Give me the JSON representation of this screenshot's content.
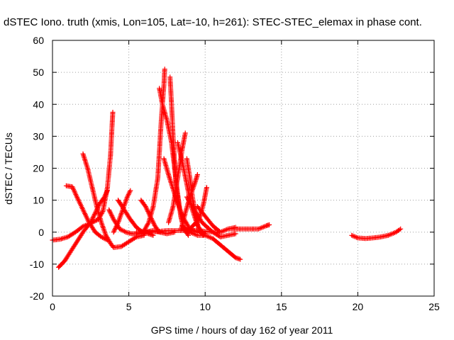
{
  "chart_data": {
    "type": "scatter",
    "title": "dSTEC Iono. truth (xmis, Lon=105, Lat=-10, h=261): STEC-STEC_elemax in phase cont.",
    "xlabel": "GPS time / hours of day 162 of year 2011",
    "ylabel": "dSTEC  / TECUs",
    "xlim": [
      0,
      25
    ],
    "ylim": [
      -20,
      60
    ],
    "xticks": [
      0,
      5,
      10,
      15,
      20,
      25
    ],
    "yticks": [
      -20,
      -10,
      0,
      10,
      20,
      30,
      40,
      50,
      60
    ],
    "xtick_labels": [
      "0",
      "5",
      "10",
      "15",
      "20",
      "25"
    ],
    "ytick_labels": [
      "-20",
      "-10",
      "0",
      "10",
      "20",
      "30",
      "40",
      "50",
      "60"
    ],
    "grid": true,
    "marker": "plus",
    "marker_color": "#ff0000",
    "series": [
      {
        "points": [
          [
            0.0,
            -2.5
          ],
          [
            0.5,
            -2.2
          ],
          [
            1.0,
            -1.5
          ],
          [
            1.5,
            0.0
          ],
          [
            2.0,
            1.8
          ],
          [
            2.5,
            2.8
          ],
          [
            3.0,
            4.0
          ],
          [
            3.3,
            6.5
          ],
          [
            3.6,
            14.0
          ],
          [
            3.8,
            24.0
          ],
          [
            3.9,
            33.0
          ],
          [
            3.95,
            37.5
          ]
        ]
      },
      {
        "points": [
          [
            0.4,
            -11.0
          ],
          [
            0.8,
            -9.0
          ],
          [
            1.2,
            -6.0
          ],
          [
            1.6,
            -3.0
          ],
          [
            2.0,
            0.0
          ],
          [
            2.5,
            3.0
          ],
          [
            2.8,
            6.0
          ],
          [
            3.1,
            9.0
          ],
          [
            3.4,
            11.0
          ],
          [
            3.6,
            13.0
          ]
        ]
      },
      {
        "points": [
          [
            0.9,
            14.5
          ],
          [
            1.3,
            14.2
          ],
          [
            1.6,
            11.0
          ],
          [
            2.0,
            7.0
          ],
          [
            2.4,
            3.0
          ],
          [
            2.8,
            0.0
          ],
          [
            3.2,
            -1.5
          ],
          [
            3.6,
            -2.5
          ]
        ]
      },
      {
        "points": [
          [
            2.0,
            24.5
          ],
          [
            2.3,
            20.0
          ],
          [
            2.6,
            14.0
          ],
          [
            2.9,
            8.0
          ],
          [
            3.2,
            3.0
          ],
          [
            3.5,
            -1.0
          ],
          [
            3.8,
            -3.5
          ],
          [
            4.0,
            -4.8
          ],
          [
            4.5,
            -4.5
          ],
          [
            5.0,
            -3.0
          ],
          [
            5.5,
            -1.5
          ],
          [
            6.0,
            -1.0
          ]
        ]
      },
      {
        "points": [
          [
            3.7,
            7.0
          ],
          [
            4.0,
            4.0
          ],
          [
            4.4,
            1.0
          ],
          [
            4.8,
            0.0
          ],
          [
            5.2,
            -0.5
          ],
          [
            5.6,
            -0.5
          ],
          [
            6.0,
            0.0
          ],
          [
            6.6,
            0.5
          ],
          [
            7.0,
            0.0
          ],
          [
            7.5,
            -0.5
          ],
          [
            8.0,
            0.0
          ]
        ]
      },
      {
        "points": [
          [
            4.0,
            0.0
          ],
          [
            4.3,
            3.0
          ],
          [
            4.6,
            7.0
          ],
          [
            4.9,
            11.0
          ],
          [
            5.1,
            13.0
          ]
        ]
      },
      {
        "points": [
          [
            4.3,
            10.0
          ],
          [
            4.7,
            7.0
          ],
          [
            5.1,
            4.0
          ],
          [
            5.5,
            1.5
          ],
          [
            5.9,
            0.0
          ],
          [
            6.3,
            -0.5
          ],
          [
            6.6,
            -1.0
          ]
        ]
      },
      {
        "points": [
          [
            5.8,
            10.0
          ],
          [
            6.1,
            8.0
          ],
          [
            6.4,
            5.0
          ],
          [
            6.7,
            2.0
          ],
          [
            7.0,
            0.0
          ],
          [
            7.5,
            -0.5
          ],
          [
            8.0,
            0.0
          ]
        ]
      },
      {
        "points": [
          [
            6.0,
            0.5
          ],
          [
            6.3,
            3.0
          ],
          [
            6.6,
            8.0
          ],
          [
            6.9,
            17.0
          ],
          [
            7.0,
            25.0
          ],
          [
            7.1,
            33.0
          ],
          [
            7.2,
            40.0
          ],
          [
            7.3,
            46.0
          ],
          [
            7.35,
            51.0
          ]
        ]
      },
      {
        "points": [
          [
            7.0,
            45.0
          ],
          [
            7.2,
            40.0
          ],
          [
            7.5,
            35.0
          ],
          [
            7.8,
            28.0
          ],
          [
            8.0,
            20.0
          ],
          [
            8.2,
            12.0
          ],
          [
            8.4,
            5.0
          ],
          [
            8.6,
            1.0
          ],
          [
            8.9,
            -1.0
          ]
        ]
      },
      {
        "points": [
          [
            7.3,
            23.0
          ],
          [
            7.6,
            18.0
          ],
          [
            8.0,
            12.0
          ],
          [
            8.5,
            5.0
          ],
          [
            9.0,
            1.0
          ],
          [
            9.5,
            0.0
          ],
          [
            10.0,
            -0.5
          ]
        ]
      },
      {
        "points": [
          [
            7.7,
            48.5
          ],
          [
            7.8,
            40.0
          ],
          [
            7.9,
            30.0
          ],
          [
            8.0,
            22.0
          ],
          [
            8.1,
            14.0
          ],
          [
            8.3,
            8.0
          ],
          [
            8.5,
            3.0
          ]
        ]
      },
      {
        "points": [
          [
            7.6,
            3.0
          ],
          [
            7.9,
            8.0
          ],
          [
            8.1,
            14.0
          ],
          [
            8.3,
            20.0
          ],
          [
            8.5,
            26.0
          ],
          [
            8.7,
            31.0
          ]
        ]
      },
      {
        "points": [
          [
            8.2,
            28.0
          ],
          [
            8.5,
            22.0
          ],
          [
            8.8,
            15.0
          ],
          [
            9.1,
            8.0
          ],
          [
            9.5,
            2.0
          ],
          [
            10.0,
            -1.0
          ]
        ]
      },
      {
        "points": [
          [
            8.4,
            0.5
          ],
          [
            8.7,
            6.0
          ],
          [
            9.0,
            11.0
          ],
          [
            9.3,
            15.0
          ],
          [
            9.5,
            18.0
          ]
        ]
      },
      {
        "points": [
          [
            8.8,
            23.0
          ],
          [
            9.0,
            17.0
          ],
          [
            9.2,
            10.0
          ],
          [
            9.4,
            5.0
          ],
          [
            9.6,
            0.5
          ],
          [
            9.9,
            -1.0
          ]
        ]
      },
      {
        "points": [
          [
            8.8,
            0.0
          ],
          [
            9.2,
            2.0
          ],
          [
            9.6,
            4.0
          ],
          [
            9.9,
            9.0
          ],
          [
            10.1,
            14.0
          ]
        ]
      },
      {
        "points": [
          [
            8.8,
            11.0
          ],
          [
            9.3,
            7.0
          ],
          [
            9.8,
            3.0
          ],
          [
            10.5,
            0.0
          ],
          [
            11.0,
            -1.5
          ],
          [
            11.5,
            -1.0
          ],
          [
            12.0,
            -0.5
          ]
        ]
      },
      {
        "points": [
          [
            9.5,
            8.0
          ],
          [
            10.0,
            5.0
          ],
          [
            10.5,
            2.0
          ],
          [
            11.0,
            0.0
          ],
          [
            11.5,
            1.0
          ],
          [
            12.0,
            1.5
          ]
        ]
      },
      {
        "points": [
          [
            8.5,
            2.0
          ],
          [
            9.0,
            0.0
          ],
          [
            9.5,
            -1.0
          ],
          [
            10.0,
            -1.0
          ],
          [
            10.5,
            -2.0
          ],
          [
            11.0,
            -4.0
          ],
          [
            11.5,
            -6.0
          ],
          [
            12.0,
            -8.0
          ],
          [
            12.3,
            -8.5
          ]
        ]
      },
      {
        "points": [
          [
            5.5,
            0.0
          ],
          [
            6.5,
            0.0
          ],
          [
            7.5,
            0.5
          ],
          [
            8.5,
            0.5
          ],
          [
            9.5,
            0.5
          ],
          [
            10.5,
            0.0
          ],
          [
            11.0,
            0.0
          ],
          [
            11.5,
            1.0
          ],
          [
            12.0,
            1.0
          ],
          [
            12.5,
            1.0
          ],
          [
            13.0,
            1.0
          ],
          [
            13.5,
            1.0
          ],
          [
            14.0,
            2.0
          ],
          [
            14.2,
            2.3
          ]
        ]
      },
      {
        "points": [
          [
            19.6,
            -1.0
          ],
          [
            20.0,
            -1.8
          ],
          [
            20.5,
            -2.0
          ],
          [
            21.0,
            -1.8
          ],
          [
            21.5,
            -1.5
          ],
          [
            22.0,
            -1.0
          ],
          [
            22.5,
            0.0
          ],
          [
            22.8,
            1.0
          ]
        ]
      }
    ]
  }
}
